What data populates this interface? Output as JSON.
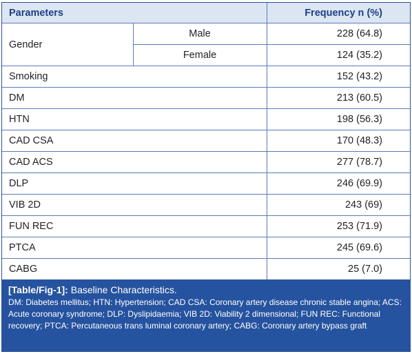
{
  "table": {
    "headers": {
      "parameters": "Parameters",
      "frequency": "Frequency n (%)"
    },
    "gender": {
      "label": "Gender",
      "rows": [
        {
          "sub": "Male",
          "value": "228 (64.8)"
        },
        {
          "sub": "Female",
          "value": "124 (35.2)"
        }
      ]
    },
    "rows": [
      {
        "label": "Smoking",
        "value": "152 (43.2)"
      },
      {
        "label": "DM",
        "value": "213 (60.5)"
      },
      {
        "label": "HTN",
        "value": "198 (56.3)"
      },
      {
        "label": "CAD CSA",
        "value": "170 (48.3)"
      },
      {
        "label": "CAD ACS",
        "value": "277 (78.7)"
      },
      {
        "label": "DLP",
        "value": "246 (69.9)"
      },
      {
        "label": "VIB 2D",
        "value": "243 (69)"
      },
      {
        "label": "FUN REC",
        "value": "253 (71.9)"
      },
      {
        "label": "PTCA",
        "value": "245 (69.6)"
      },
      {
        "label": "CABG",
        "value": "25 (7.0)"
      }
    ]
  },
  "caption": {
    "ref": "[Table/Fig-1]:",
    "title": "Baseline Characteristics.",
    "notes": "DM: Diabetes mellitus; HTN: Hypertension; CAD CSA: Coronary artery disease chronic stable angina; ACS: Acute coronary syndrome; DLP: Dyslipidaemia; VIB 2D: Viability 2 dimensional; FUN REC: Functional recovery; PTCA: Percutaneous trans luminal coronary artery; CABG: Coronary artery bypass graft"
  },
  "colors": {
    "header_bg": "#dce6f3",
    "header_text": "#1d3f86",
    "caption_bg": "#26539f",
    "border": "#5a7ab8"
  }
}
